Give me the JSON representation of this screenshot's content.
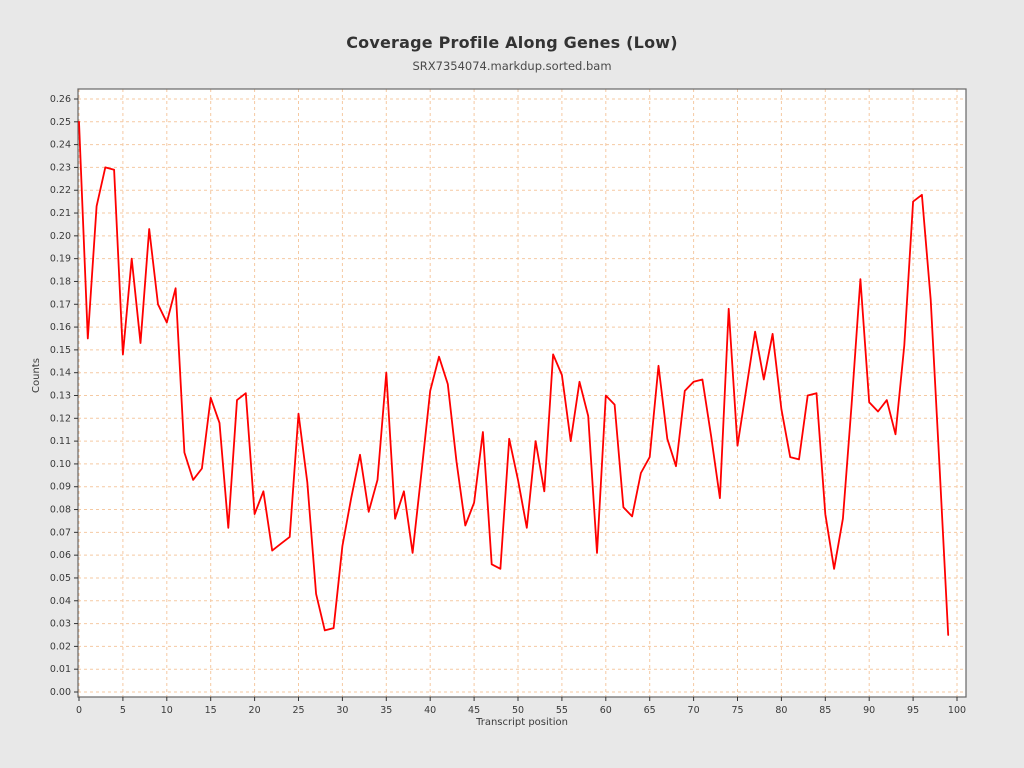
{
  "header": {
    "title": "Coverage Profile Along Genes (Low)",
    "subtitle": "SRX7354074.markdup.sorted.bam"
  },
  "chart_data": {
    "type": "line",
    "title": "Coverage Profile Along Genes (Low)",
    "subtitle": "SRX7354074.markdup.sorted.bam",
    "xlabel": "Transcript position",
    "ylabel": "Counts",
    "series": [
      {
        "name": "coverage",
        "x": [
          0,
          1,
          2,
          3,
          4,
          5,
          6,
          7,
          8,
          9,
          10,
          11,
          12,
          13,
          14,
          15,
          16,
          17,
          18,
          19,
          20,
          21,
          22,
          23,
          24,
          25,
          26,
          27,
          28,
          29,
          30,
          31,
          32,
          33,
          34,
          35,
          36,
          37,
          38,
          39,
          40,
          41,
          42,
          43,
          44,
          45,
          46,
          47,
          48,
          49,
          50,
          51,
          52,
          53,
          54,
          55,
          56,
          57,
          58,
          59,
          60,
          61,
          62,
          63,
          64,
          65,
          66,
          67,
          68,
          69,
          70,
          71,
          72,
          73,
          74,
          75,
          76,
          77,
          78,
          79,
          80,
          81,
          82,
          83,
          84,
          85,
          86,
          87,
          88,
          89,
          90,
          91,
          92,
          93,
          94,
          95,
          96,
          97,
          98,
          99
        ],
        "values": [
          0.25,
          0.155,
          0.213,
          0.23,
          0.229,
          0.148,
          0.19,
          0.153,
          0.203,
          0.17,
          0.162,
          0.177,
          0.105,
          0.093,
          0.098,
          0.129,
          0.118,
          0.072,
          0.128,
          0.131,
          0.078,
          0.088,
          0.062,
          0.065,
          0.068,
          0.122,
          0.092,
          0.043,
          0.027,
          0.028,
          0.064,
          0.085,
          0.104,
          0.079,
          0.093,
          0.14,
          0.076,
          0.088,
          0.061,
          0.096,
          0.132,
          0.147,
          0.135,
          0.101,
          0.073,
          0.083,
          0.114,
          0.056,
          0.054,
          0.111,
          0.093,
          0.072,
          0.11,
          0.088,
          0.148,
          0.139,
          0.11,
          0.136,
          0.121,
          0.061,
          0.13,
          0.126,
          0.081,
          0.077,
          0.096,
          0.103,
          0.143,
          0.111,
          0.099,
          0.132,
          0.136,
          0.137,
          0.112,
          0.085,
          0.168,
          0.108,
          0.133,
          0.158,
          0.137,
          0.157,
          0.124,
          0.103,
          0.102,
          0.13,
          0.131,
          0.078,
          0.054,
          0.076,
          0.126,
          0.181,
          0.127,
          0.123,
          0.128,
          0.113,
          0.152,
          0.215,
          0.218,
          0.172,
          0.1,
          0.025
        ]
      }
    ],
    "x_ticks": [
      0,
      5,
      10,
      15,
      20,
      25,
      30,
      35,
      40,
      45,
      50,
      55,
      60,
      65,
      70,
      75,
      80,
      85,
      90,
      95,
      100
    ],
    "y_ticks": [
      "0.00",
      "0.01",
      "0.02",
      "0.03",
      "0.04",
      "0.05",
      "0.06",
      "0.07",
      "0.08",
      "0.09",
      "0.10",
      "0.11",
      "0.12",
      "0.13",
      "0.14",
      "0.15",
      "0.16",
      "0.17",
      "0.18",
      "0.19",
      "0.20",
      "0.21",
      "0.22",
      "0.23",
      "0.24",
      "0.25",
      "0.26"
    ],
    "xlim": [
      0,
      101
    ],
    "ylim": [
      0,
      0.266
    ],
    "grid": "dashed",
    "legend_position": "none",
    "line_color": "#ff0000",
    "grid_color": "#f5c9a2",
    "axis_color": "#666666",
    "tick_text_color": "#3a3a3a",
    "background": "#e8e8e8",
    "plot_background": "#ffffff"
  }
}
